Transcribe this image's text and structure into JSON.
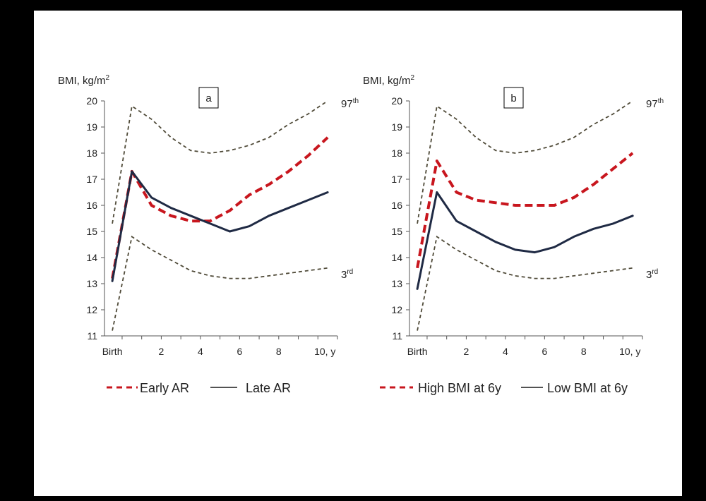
{
  "chart_data": [
    {
      "panel_label": "a",
      "type": "line",
      "ylabel": "BMI, kg/m",
      "ylabel_sup": "2",
      "ylim": [
        11,
        20
      ],
      "yticks": [
        11,
        12,
        13,
        14,
        15,
        16,
        17,
        18,
        19,
        20
      ],
      "xlim": [
        -0.9,
        11
      ],
      "xticks": [
        {
          "value": -0.5,
          "label": "Birth"
        },
        {
          "value": 2,
          "label": "2"
        },
        {
          "value": 4,
          "label": "4"
        },
        {
          "value": 6,
          "label": "6"
        },
        {
          "value": 8,
          "label": "8"
        },
        {
          "value": 10,
          "label": "10, y"
        }
      ],
      "reference_curves": [
        {
          "label": "97",
          "label_sup": "th",
          "x": [
            -0.5,
            0.5,
            1.5,
            2.5,
            3.5,
            4.5,
            5.5,
            6.5,
            7.5,
            8.5,
            9.5,
            10.5
          ],
          "y": [
            15.3,
            19.8,
            19.3,
            18.6,
            18.1,
            18.0,
            18.1,
            18.3,
            18.6,
            19.1,
            19.5,
            20.0
          ]
        },
        {
          "label": "3",
          "label_sup": "rd",
          "x": [
            -0.5,
            0.5,
            1.5,
            2.5,
            3.5,
            4.5,
            5.5,
            6.5,
            7.5,
            8.5,
            9.5,
            10.5
          ],
          "y": [
            11.2,
            14.8,
            14.3,
            13.9,
            13.5,
            13.3,
            13.2,
            13.2,
            13.3,
            13.4,
            13.5,
            13.6
          ]
        }
      ],
      "series": [
        {
          "name": "Early AR",
          "style": "dashed",
          "color": "#c8161e",
          "x": [
            -0.5,
            0.5,
            1.5,
            2.5,
            3.5,
            4.5,
            5.5,
            6.5,
            7.5,
            8.5,
            9.5,
            10.5
          ],
          "y": [
            13.2,
            17.3,
            16.0,
            15.6,
            15.4,
            15.4,
            15.8,
            16.4,
            16.8,
            17.3,
            17.9,
            18.6
          ]
        },
        {
          "name": "Late AR",
          "style": "solid",
          "color": "#1f2a44",
          "x": [
            -0.5,
            0.5,
            1.5,
            2.5,
            3.5,
            4.5,
            5.5,
            6.5,
            7.5,
            8.5,
            9.5,
            10.5
          ],
          "y": [
            13.1,
            17.3,
            16.3,
            15.9,
            15.6,
            15.3,
            15.0,
            15.2,
            15.6,
            15.9,
            16.2,
            16.5
          ]
        }
      ],
      "legend_position": "bottom"
    },
    {
      "panel_label": "b",
      "type": "line",
      "ylabel": "BMI, kg/m",
      "ylabel_sup": "2",
      "ylim": [
        11,
        20
      ],
      "yticks": [
        11,
        12,
        13,
        14,
        15,
        16,
        17,
        18,
        19,
        20
      ],
      "xlim": [
        -0.9,
        11
      ],
      "xticks": [
        {
          "value": -0.5,
          "label": "Birth"
        },
        {
          "value": 2,
          "label": "2"
        },
        {
          "value": 4,
          "label": "4"
        },
        {
          "value": 6,
          "label": "6"
        },
        {
          "value": 8,
          "label": "8"
        },
        {
          "value": 10,
          "label": "10, y"
        }
      ],
      "reference_curves": [
        {
          "label": "97",
          "label_sup": "th",
          "x": [
            -0.5,
            0.5,
            1.5,
            2.5,
            3.5,
            4.5,
            5.5,
            6.5,
            7.5,
            8.5,
            9.5,
            10.5
          ],
          "y": [
            15.3,
            19.8,
            19.3,
            18.6,
            18.1,
            18.0,
            18.1,
            18.3,
            18.6,
            19.1,
            19.5,
            20.0
          ]
        },
        {
          "label": "3",
          "label_sup": "rd",
          "x": [
            -0.5,
            0.5,
            1.5,
            2.5,
            3.5,
            4.5,
            5.5,
            6.5,
            7.5,
            8.5,
            9.5,
            10.5
          ],
          "y": [
            11.2,
            14.8,
            14.3,
            13.9,
            13.5,
            13.3,
            13.2,
            13.2,
            13.3,
            13.4,
            13.5,
            13.6
          ]
        }
      ],
      "series": [
        {
          "name": "High BMI at 6y",
          "style": "dashed",
          "color": "#c8161e",
          "x": [
            -0.5,
            0.5,
            1.5,
            2.5,
            3.5,
            4.5,
            5.5,
            6.5,
            7.5,
            8.5,
            9.5,
            10.5
          ],
          "y": [
            13.6,
            17.7,
            16.5,
            16.2,
            16.1,
            16.0,
            16.0,
            16.0,
            16.3,
            16.8,
            17.4,
            18.0
          ]
        },
        {
          "name": "Low BMI at 6y",
          "style": "solid",
          "color": "#1f2a44",
          "x": [
            -0.5,
            0.5,
            1.5,
            2.5,
            3.5,
            4.5,
            5.5,
            6.5,
            7.5,
            8.5,
            9.5,
            10.5
          ],
          "y": [
            12.8,
            16.5,
            15.4,
            15.0,
            14.6,
            14.3,
            14.2,
            14.4,
            14.8,
            15.1,
            15.3,
            15.6
          ]
        }
      ],
      "legend_position": "bottom"
    }
  ]
}
